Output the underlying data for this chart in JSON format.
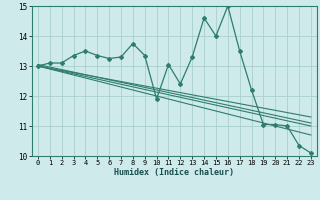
{
  "xlabel": "Humidex (Indice chaleur)",
  "ylabel": "",
  "xlim": [
    -0.5,
    23.5
  ],
  "ylim": [
    10,
    15
  ],
  "xticks": [
    0,
    1,
    2,
    3,
    4,
    5,
    6,
    7,
    8,
    9,
    10,
    11,
    12,
    13,
    14,
    15,
    16,
    17,
    18,
    19,
    20,
    21,
    22,
    23
  ],
  "yticks": [
    10,
    11,
    12,
    13,
    14,
    15
  ],
  "bg_color": "#ceeaea",
  "grid_color": "#aacece",
  "line_color": "#2e7d6e",
  "main_series_x": [
    0,
    1,
    2,
    3,
    4,
    5,
    6,
    7,
    8,
    9,
    10,
    11,
    12,
    13,
    14,
    15,
    16,
    17,
    18,
    19,
    20,
    21,
    22,
    23
  ],
  "main_series_y": [
    13.0,
    13.1,
    13.1,
    13.35,
    13.5,
    13.35,
    13.25,
    13.3,
    13.75,
    13.35,
    11.9,
    13.05,
    12.4,
    13.3,
    14.6,
    14.0,
    15.0,
    13.5,
    12.2,
    11.05,
    11.05,
    11.0,
    10.35,
    10.1
  ],
  "reg_lines": [
    {
      "x": [
        0,
        23
      ],
      "y": [
        13.0,
        11.0
      ]
    },
    {
      "x": [
        0,
        23
      ],
      "y": [
        13.0,
        10.7
      ]
    },
    {
      "x": [
        0,
        23
      ],
      "y": [
        13.0,
        11.3
      ]
    },
    {
      "x": [
        0,
        23
      ],
      "y": [
        13.05,
        11.1
      ]
    }
  ]
}
